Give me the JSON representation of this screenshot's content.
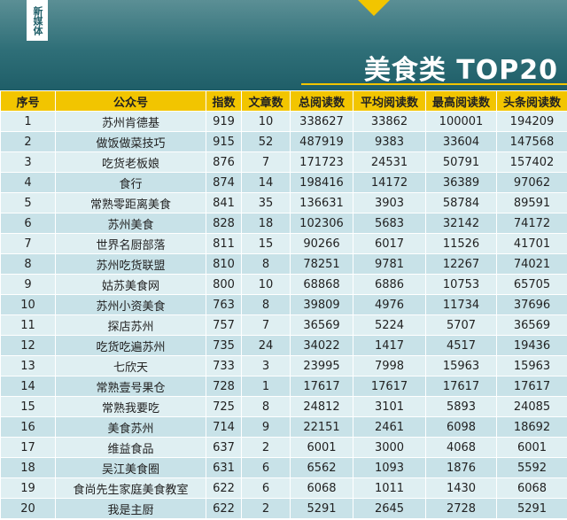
{
  "header": {
    "tag": "新媒体",
    "title": "美食类 TOP20"
  },
  "table": {
    "columns": [
      "序号",
      "公众号",
      "指数",
      "文章数",
      "总阅读数",
      "平均阅读数",
      "最高阅读数",
      "头条阅读数"
    ],
    "rows": [
      [
        1,
        "苏州肯德基",
        919,
        10,
        338627,
        33862,
        100001,
        194209
      ],
      [
        2,
        "做饭做菜技巧",
        915,
        52,
        487919,
        9383,
        33604,
        147568
      ],
      [
        3,
        "吃货老板娘",
        876,
        7,
        171723,
        24531,
        50791,
        157402
      ],
      [
        4,
        "食行",
        874,
        14,
        198416,
        14172,
        36389,
        97062
      ],
      [
        5,
        "常熟零距离美食",
        841,
        35,
        136631,
        3903,
        58784,
        89591
      ],
      [
        6,
        "苏州美食",
        828,
        18,
        102306,
        5683,
        32142,
        74172
      ],
      [
        7,
        "世界名厨部落",
        811,
        15,
        90266,
        6017,
        11526,
        41701
      ],
      [
        8,
        "苏州吃货联盟",
        810,
        8,
        78251,
        9781,
        12267,
        74021
      ],
      [
        9,
        "姑苏美食网",
        800,
        10,
        68868,
        6886,
        10753,
        65705
      ],
      [
        10,
        "苏州小资美食",
        763,
        8,
        39809,
        4976,
        11734,
        37696
      ],
      [
        11,
        "探店苏州",
        757,
        7,
        36569,
        5224,
        5707,
        36569
      ],
      [
        12,
        "吃货吃遍苏州",
        735,
        24,
        34022,
        1417,
        4517,
        19436
      ],
      [
        13,
        "七欣天",
        733,
        3,
        23995,
        7998,
        15963,
        15963
      ],
      [
        14,
        "常熟壹号果仓",
        728,
        1,
        17617,
        17617,
        17617,
        17617
      ],
      [
        15,
        "常熟我要吃",
        725,
        8,
        24812,
        3101,
        5893,
        24085
      ],
      [
        16,
        "美食苏州",
        714,
        9,
        22151,
        2461,
        6098,
        18692
      ],
      [
        17,
        "维益食品",
        637,
        2,
        6001,
        3000,
        4068,
        6001
      ],
      [
        18,
        "吴江美食圈",
        631,
        6,
        6562,
        1093,
        1876,
        5592
      ],
      [
        19,
        "食尚先生家庭美食教室",
        622,
        6,
        6068,
        1011,
        1430,
        6068
      ],
      [
        20,
        "我是主厨",
        622,
        2,
        5291,
        2645,
        2728,
        5291
      ]
    ]
  }
}
